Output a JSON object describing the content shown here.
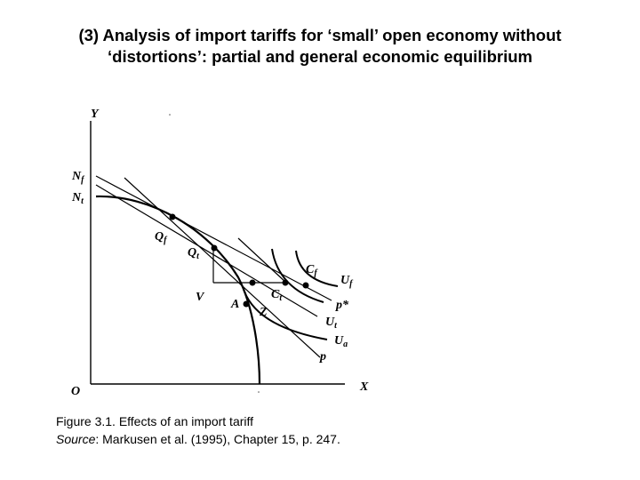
{
  "slide": {
    "title_line1": "(3) Analysis of import tariffs for ‘small’ open economy without",
    "title_line2": "‘distortions’: partial and general economic equilibrium"
  },
  "diagram": {
    "axis_labels": {
      "y": "Y",
      "x": "X",
      "origin": "O"
    },
    "intercepts": {
      "nf": "N",
      "nf_sub": "f",
      "nt": "N",
      "nt_sub": "t"
    },
    "points": {
      "qf": "Q",
      "qf_sub": "f",
      "qt": "Q",
      "qt_sub": "t",
      "cf": "C",
      "cf_sub": "f",
      "ct": "C",
      "ct_sub": "t",
      "v": "V",
      "a": "A",
      "z": "Z"
    },
    "curves": {
      "uf": "U",
      "uf_sub": "f",
      "ut": "U",
      "ut_sub": "t",
      "ua": "U",
      "ua_sub": "a",
      "p_star": "p*",
      "p": "p"
    }
  },
  "caption": {
    "line1": "Figure 3.1. Effects of an import tariff",
    "source_label": "Source",
    "source_text": ": Markusen et al. (1995), Chapter 15, p. 247."
  }
}
